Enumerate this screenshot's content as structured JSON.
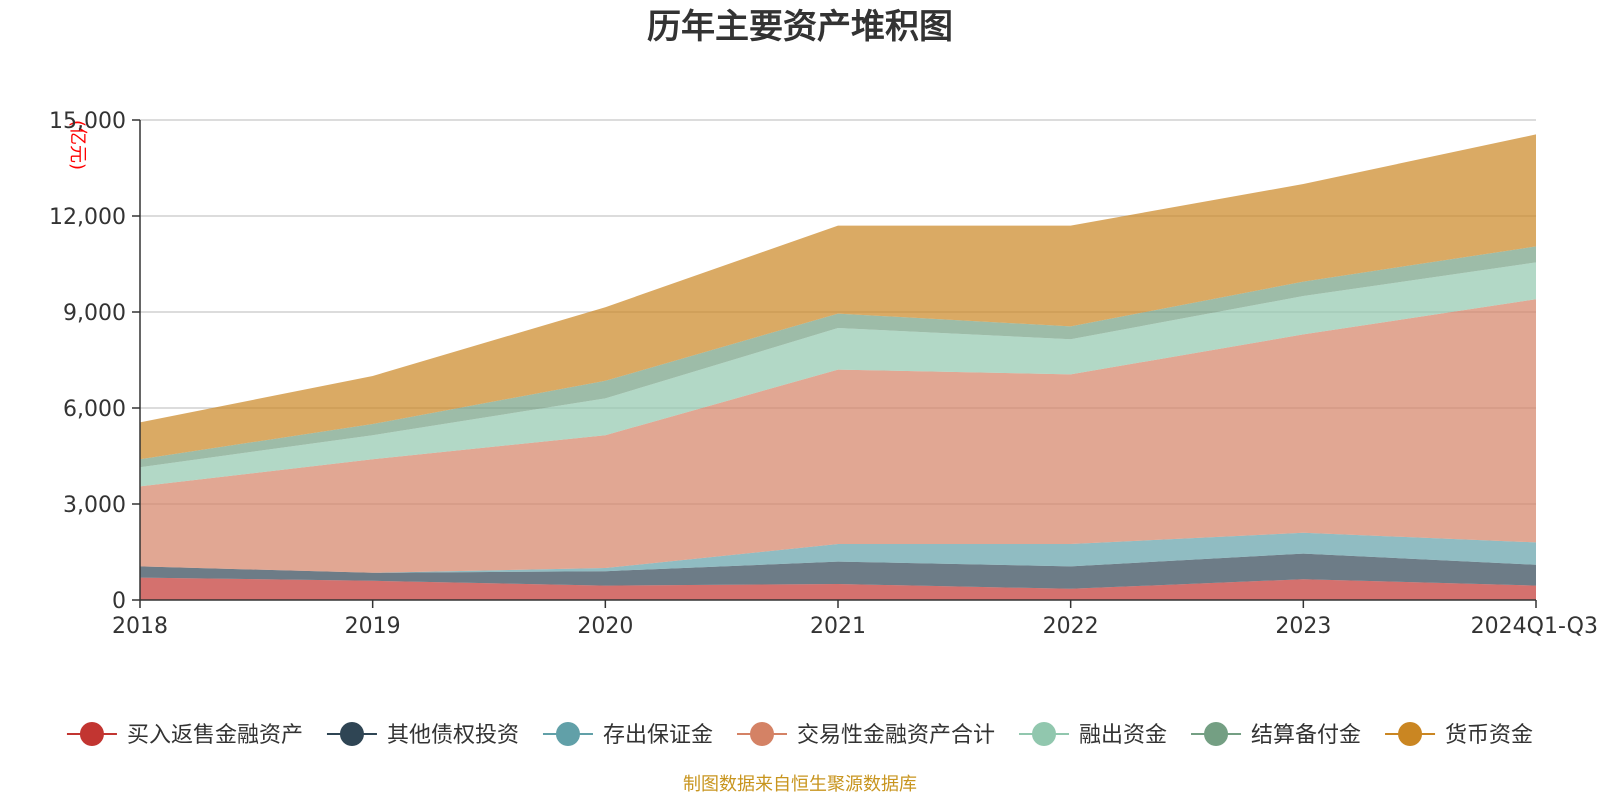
{
  "chart_data": {
    "type": "area",
    "stacked": true,
    "title": "历年主要资产堆积图",
    "unit": "(亿元)",
    "categories": [
      "2018",
      "2019",
      "2020",
      "2021",
      "2022",
      "2023",
      "2024Q1-Q3"
    ],
    "ylim": [
      0,
      15000
    ],
    "yticks": [
      "0",
      "3,000",
      "6,000",
      "9,000",
      "12,000",
      "15,000"
    ],
    "ytick_values": [
      0,
      3000,
      6000,
      9000,
      12000,
      15000
    ],
    "grid": true,
    "legend_position": "bottom",
    "series": [
      {
        "name": "买入返售金融资产",
        "color": "#c23531",
        "values": [
          700,
          600,
          450,
          500,
          350,
          650,
          450
        ]
      },
      {
        "name": "其他债权投资",
        "color": "#2f4554",
        "values": [
          350,
          250,
          450,
          700,
          700,
          800,
          650
        ]
      },
      {
        "name": "存出保证金",
        "color": "#61a0a8",
        "values": [
          0,
          0,
          100,
          550,
          700,
          650,
          700
        ]
      },
      {
        "name": "交易性金融资产合计",
        "color": "#d48265",
        "values": [
          2500,
          3550,
          4150,
          5450,
          5300,
          6200,
          7600
        ]
      },
      {
        "name": "融出资金",
        "color": "#91c7ae",
        "values": [
          600,
          750,
          1150,
          1300,
          1100,
          1200,
          1150
        ]
      },
      {
        "name": "结算备付金",
        "color": "#749f83",
        "values": [
          250,
          350,
          550,
          450,
          400,
          450,
          500
        ]
      },
      {
        "name": "货币资金",
        "color": "#ca8622",
        "values": [
          1150,
          1500,
          2300,
          2750,
          3150,
          3050,
          3500
        ]
      }
    ]
  },
  "source_text": "制图数据来自恒生聚源数据库"
}
